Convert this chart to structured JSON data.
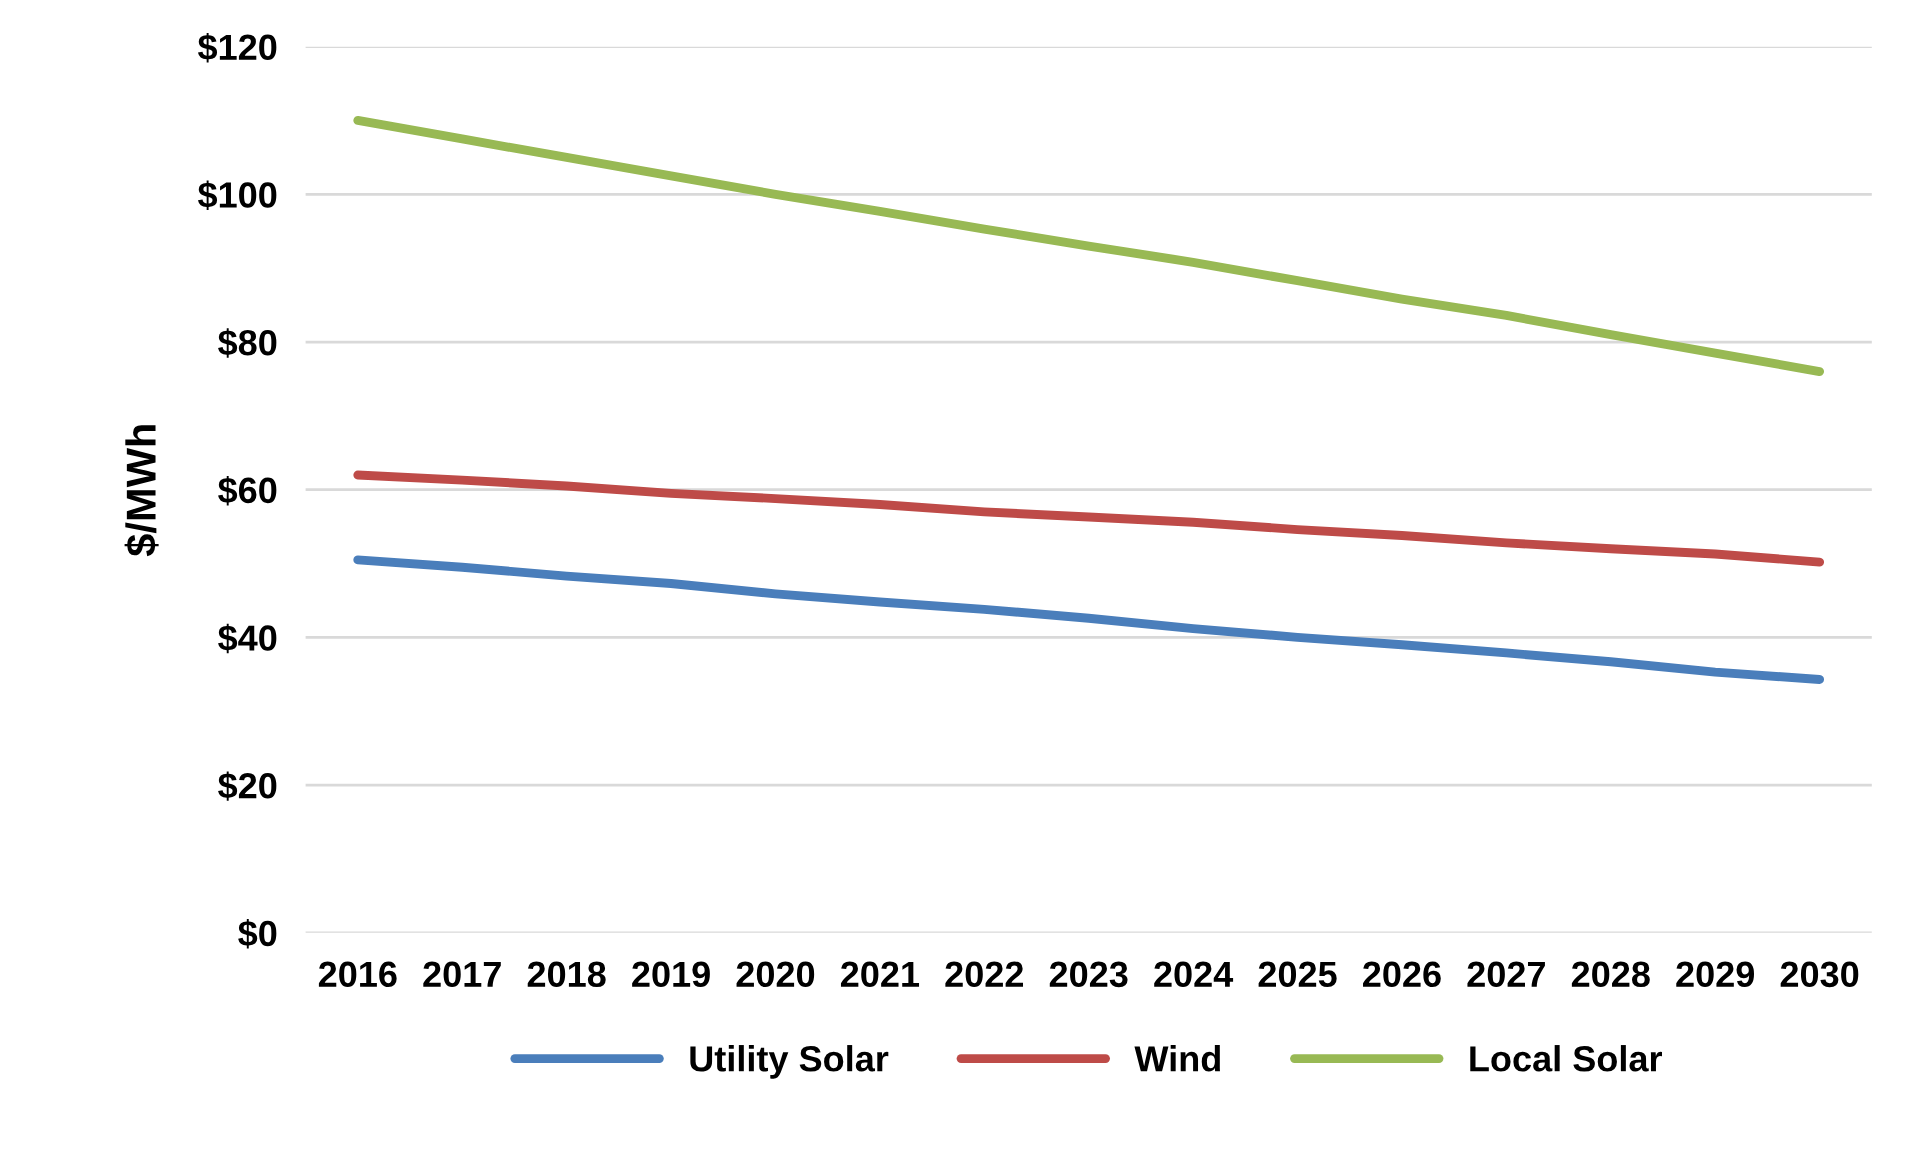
{
  "chart_data": {
    "type": "line",
    "ylabel": "$/MWh",
    "categories": [
      "2016",
      "2017",
      "2018",
      "2019",
      "2020",
      "2021",
      "2022",
      "2023",
      "2024",
      "2025",
      "2026",
      "2027",
      "2028",
      "2029",
      "2030"
    ],
    "series": [
      {
        "name": "Utility Solar",
        "color": "#4a7ebb",
        "values": [
          50.5,
          49.5,
          48.3,
          47.3,
          45.9,
          44.8,
          43.8,
          42.6,
          41.2,
          40,
          39,
          37.9,
          36.7,
          35.3,
          34.3
        ]
      },
      {
        "name": "Wind",
        "color": "#be4b48",
        "values": [
          62,
          61.3,
          60.5,
          59.5,
          58.8,
          58,
          57,
          56.3,
          55.6,
          54.6,
          53.8,
          52.8,
          52,
          51.3,
          50.2
        ]
      },
      {
        "name": "Local Solar",
        "color": "#98b954",
        "values": [
          110,
          107.5,
          105,
          102.5,
          100,
          97.7,
          95.3,
          93,
          90.8,
          88.3,
          85.8,
          83.6,
          81,
          78.5,
          76
        ]
      }
    ],
    "ylim": [
      0,
      120
    ],
    "yticks": [
      {
        "value": 0,
        "label": "$0"
      },
      {
        "value": 20,
        "label": "$20"
      },
      {
        "value": 40,
        "label": "$40"
      },
      {
        "value": 60,
        "label": "$60"
      },
      {
        "value": 80,
        "label": "$80"
      },
      {
        "value": 100,
        "label": "$100"
      },
      {
        "value": 120,
        "label": "$120"
      }
    ],
    "grid": "y",
    "legend": "bottom",
    "marker": "none",
    "line_style": "solid"
  }
}
